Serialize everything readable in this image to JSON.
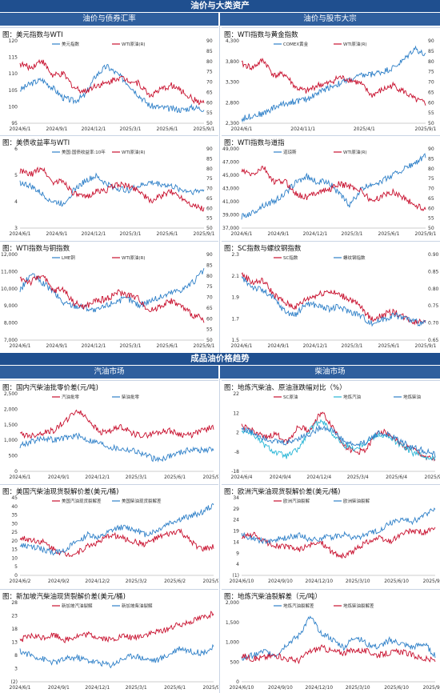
{
  "sections": [
    {
      "title": "油价与大类资产",
      "left": "油价与债券汇率",
      "right": "油价与股市大宗"
    },
    {
      "title": "成品油价格趋势",
      "left": "汽油市场",
      "right": "柴油市场"
    }
  ],
  "colors": {
    "blue": "#2f80c8",
    "red": "#c8102e",
    "cyan": "#26b5d6",
    "header": "#1f4f8f",
    "subheader": "#2f5f9e"
  },
  "panels": [
    {
      "title": "图：美元指数与WTI",
      "left_ticks": [
        "120",
        "115",
        "110",
        "105",
        "100",
        "95"
      ],
      "right_ticks": [
        "90",
        "85",
        "80",
        "75",
        "70",
        "65",
        "60",
        "55",
        "50"
      ],
      "x_ticks": [
        "2024/6/1",
        "2024/9/1",
        "2024/12/1",
        "2025/3/1",
        "2025/6/1",
        "2025/9/1"
      ],
      "series": [
        {
          "name": "美元指数",
          "color": "#2f80c8",
          "axis": "left"
        },
        {
          "name": "WTI原油(R)",
          "color": "#c8102e",
          "axis": "right"
        }
      ]
    },
    {
      "title": "图：WTI指数与黄金指数",
      "left_ticks": [
        "4,300",
        "3,800",
        "3,300",
        "2,800",
        "2,300"
      ],
      "right_ticks": [
        "90",
        "85",
        "80",
        "75",
        "70",
        "65",
        "60",
        "55",
        "50"
      ],
      "x_ticks": [
        "2024/6/1",
        "2024/11/1",
        "2025/4/1",
        "2025/9/1"
      ],
      "series": [
        {
          "name": "COMEX黄金",
          "color": "#2f80c8",
          "axis": "left"
        },
        {
          "name": "WTI原油(R)",
          "color": "#c8102e",
          "axis": "right"
        }
      ]
    },
    {
      "title": "图：美债收益率与WTI",
      "left_ticks": [
        "6",
        "5",
        "4",
        "3"
      ],
      "right_ticks": [
        "90",
        "85",
        "80",
        "75",
        "70",
        "65",
        "60",
        "55",
        "50"
      ],
      "x_ticks": [
        "2024/6/1",
        "2024/9/1",
        "2024/12/1",
        "2025/3/1",
        "2025/6/1",
        "2025/9/1"
      ],
      "series": [
        {
          "name": "美国:国债收益率:10年",
          "color": "#2f80c8",
          "axis": "left"
        },
        {
          "name": "WTI原油(R)",
          "color": "#c8102e",
          "axis": "right"
        }
      ]
    },
    {
      "title": "图：WTI指数与道指",
      "left_ticks": [
        "49,000",
        "47,000",
        "45,000",
        "43,000",
        "41,000",
        "39,000",
        "37,000"
      ],
      "right_ticks": [
        "90",
        "85",
        "80",
        "75",
        "70",
        "65",
        "60",
        "55",
        "50"
      ],
      "x_ticks": [
        "2024/6/1",
        "2024/9/1",
        "2024/12/1",
        "2025/3/1",
        "2025/6/1",
        "2025/9/1"
      ],
      "series": [
        {
          "name": "道琼斯",
          "color": "#2f80c8",
          "axis": "left"
        },
        {
          "name": "WTI原油(R)",
          "color": "#c8102e",
          "axis": "right"
        }
      ]
    },
    {
      "title": "图：WTI指数与铜指数",
      "left_ticks": [
        "12,000",
        "11,000",
        "10,000",
        "9,000",
        "8,000",
        "7,000"
      ],
      "right_ticks": [
        "90",
        "85",
        "80",
        "75",
        "70",
        "65",
        "60",
        "55",
        "50"
      ],
      "x_ticks": [
        "2024/6/1",
        "2024/9/1",
        "2024/12/1",
        "2025/3/1",
        "2025/6/1",
        "2025/9/1"
      ],
      "series": [
        {
          "name": "LME铜",
          "color": "#2f80c8",
          "axis": "left"
        },
        {
          "name": "WTI原油(R)",
          "color": "#c8102e",
          "axis": "right"
        }
      ]
    },
    {
      "title": "图：SC指数与螺纹钢指数",
      "left_ticks": [
        "2.3",
        "2.1",
        "1.9",
        "1.7",
        "1.5"
      ],
      "right_ticks": [
        "0.90",
        "0.85",
        "0.80",
        "0.75",
        "0.70",
        "0.65"
      ],
      "x_ticks": [
        "2024/6/1",
        "2024/9/1",
        "2024/12/1",
        "2025/3/1",
        "2025/6/1",
        "2025/9/1"
      ],
      "series": [
        {
          "name": "SC指数",
          "color": "#c8102e",
          "axis": "left"
        },
        {
          "name": "螺纹钢指数",
          "color": "#2f80c8",
          "axis": "right"
        }
      ]
    },
    {
      "title": "图：国内汽柴油批零价差(元/吨)",
      "left_ticks": [
        "2,500",
        "2,000",
        "1,500",
        "1,000",
        "500",
        "0"
      ],
      "right_ticks": [],
      "x_ticks": [
        "2024/6/1",
        "2024/9/1",
        "2024/12/1",
        "2025/3/1",
        "2025/6/1",
        "2025/9/1"
      ],
      "series": [
        {
          "name": "汽油批零",
          "color": "#c8102e",
          "axis": "left"
        },
        {
          "name": "柴油批零",
          "color": "#2f80c8",
          "axis": "left"
        }
      ]
    },
    {
      "title": "图：地炼汽柴油、原油涨跌幅对比（%）",
      "left_ticks": [
        "22",
        "12",
        "2",
        "-8",
        "-18"
      ],
      "right_ticks": [],
      "x_ticks": [
        "2024/6/4",
        "2024/9/4",
        "2024/12/4",
        "2025/3/4",
        "2025/6/4",
        "2025/9/4"
      ],
      "series": [
        {
          "name": "SC原油",
          "color": "#c8102e",
          "axis": "left"
        },
        {
          "name": "地炼汽油",
          "color": "#26b5d6",
          "axis": "left"
        },
        {
          "name": "地炼柴油",
          "color": "#2f80c8",
          "axis": "left"
        }
      ]
    },
    {
      "title": "图：美国汽柴油现货裂解价差(美元/桶)",
      "left_ticks": [
        "45",
        "40",
        "35",
        "30",
        "25",
        "20",
        "15",
        "10",
        "5",
        "0"
      ],
      "right_ticks": [],
      "x_ticks": [
        "2024/6/2",
        "2024/9/2",
        "2024/12/2",
        "2025/3/2",
        "2025/6/2",
        "2025/9/2"
      ],
      "series": [
        {
          "name": "美国汽油现货裂解差",
          "color": "#c8102e",
          "axis": "left"
        },
        {
          "name": "美国柴油现货裂解差",
          "color": "#2f80c8",
          "axis": "left"
        }
      ]
    },
    {
      "title": "图：欧洲汽柴油现货裂解价差(美元/桶)",
      "left_ticks": [
        "34",
        "29",
        "24",
        "19",
        "14",
        "9",
        "4",
        "(1)"
      ],
      "right_ticks": [],
      "x_ticks": [
        "2024/6/10",
        "2024/9/10",
        "2024/12/10",
        "2025/3/10",
        "2025/6/10",
        "2025/9/10"
      ],
      "series": [
        {
          "name": "欧洲汽油裂解",
          "color": "#c8102e",
          "axis": "left"
        },
        {
          "name": "欧洲柴油裂解",
          "color": "#2f80c8",
          "axis": "left"
        }
      ]
    },
    {
      "title": "图：新加坡汽柴油现货裂解价差(美元/桶)",
      "left_ticks": [
        "28",
        "23",
        "18",
        "13",
        "8",
        "3",
        "(2)"
      ],
      "right_ticks": [],
      "x_ticks": [
        "2024/6/1",
        "2024/9/1",
        "2024/12/1",
        "2025/3/1",
        "2025/6/1",
        "2025/9/1"
      ],
      "series": [
        {
          "name": "新加坡汽油裂解",
          "color": "#c8102e",
          "axis": "left"
        },
        {
          "name": "新加坡柴油裂解",
          "color": "#2f80c8",
          "axis": "left"
        }
      ]
    },
    {
      "title": "图：地炼汽柴油裂解差（元/吨）",
      "left_ticks": [
        "2,000",
        "1,500",
        "1,000",
        "500",
        "0"
      ],
      "right_ticks": [],
      "x_ticks": [
        "2024/6/10",
        "2024/9/10",
        "2024/12/10",
        "2025/3/10",
        "2025/6/10",
        "2025/9/10"
      ],
      "series": [
        {
          "name": "地炼汽油裂解差",
          "color": "#2f80c8",
          "axis": "left"
        },
        {
          "name": "地炼柴油裂解差",
          "color": "#c8102e",
          "axis": "left"
        }
      ]
    }
  ]
}
